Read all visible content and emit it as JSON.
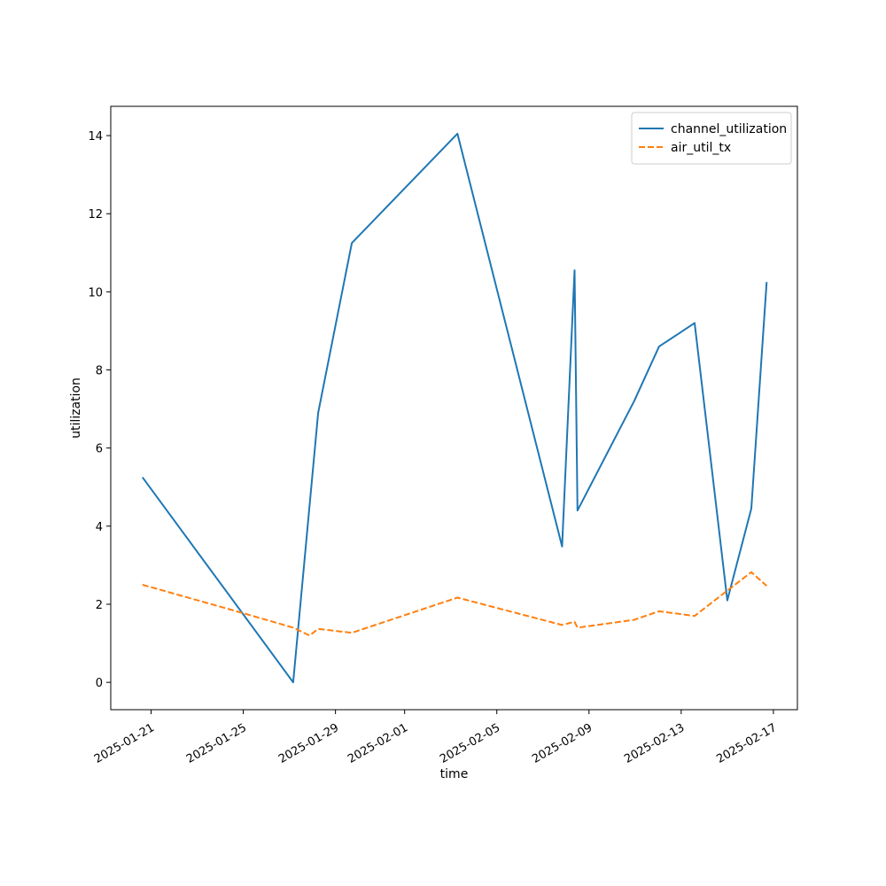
{
  "chart_data": {
    "type": "line",
    "title": "",
    "xlabel": "time",
    "ylabel": "utilization",
    "x_scale": "date",
    "xlim": [
      "2025-01-19T06:00",
      "2025-02-18T01:00"
    ],
    "ylim": [
      -0.7,
      14.75
    ],
    "x_ticks": [
      "2025-01-21",
      "2025-01-25",
      "2025-01-29",
      "2025-02-01",
      "2025-02-05",
      "2025-02-09",
      "2025-02-13",
      "2025-02-17"
    ],
    "y_ticks": [
      0,
      2,
      4,
      6,
      8,
      10,
      12,
      14
    ],
    "grid": false,
    "legend_position": "top-right",
    "series": [
      {
        "name": "channel_utilization",
        "color": "#1f77b4",
        "dash": "solid",
        "points": [
          {
            "x": "2025-01-20T15:00",
            "y": 5.25
          },
          {
            "x": "2025-01-27T04:00",
            "y": 0.0
          },
          {
            "x": "2025-01-28T06:00",
            "y": 6.9
          },
          {
            "x": "2025-01-29T17:00",
            "y": 11.25
          },
          {
            "x": "2025-02-03T07:00",
            "y": 14.05
          },
          {
            "x": "2025-02-07T20:00",
            "y": 3.48
          },
          {
            "x": "2025-02-08T09:00",
            "y": 10.55
          },
          {
            "x": "2025-02-08T12:00",
            "y": 4.4
          },
          {
            "x": "2025-02-10T23:00",
            "y": 7.2
          },
          {
            "x": "2025-02-12T01:00",
            "y": 8.6
          },
          {
            "x": "2025-02-13T14:00",
            "y": 9.2
          },
          {
            "x": "2025-02-15T00:00",
            "y": 2.1
          },
          {
            "x": "2025-02-16T01:00",
            "y": 4.45
          },
          {
            "x": "2025-02-16T17:00",
            "y": 10.25
          }
        ]
      },
      {
        "name": "air_util_tx",
        "color": "#ff7f0e",
        "dash": "dashed",
        "points": [
          {
            "x": "2025-01-20T15:00",
            "y": 2.5
          },
          {
            "x": "2025-01-25T00:00",
            "y": 1.77
          },
          {
            "x": "2025-01-27T04:00",
            "y": 1.4
          },
          {
            "x": "2025-01-27T21:00",
            "y": 1.2
          },
          {
            "x": "2025-01-28T06:00",
            "y": 1.37
          },
          {
            "x": "2025-01-29T17:00",
            "y": 1.27
          },
          {
            "x": "2025-02-03T07:00",
            "y": 2.17
          },
          {
            "x": "2025-02-07T20:00",
            "y": 1.47
          },
          {
            "x": "2025-02-08T09:00",
            "y": 1.55
          },
          {
            "x": "2025-02-08T12:00",
            "y": 1.4
          },
          {
            "x": "2025-02-10T23:00",
            "y": 1.6
          },
          {
            "x": "2025-02-12T01:00",
            "y": 1.82
          },
          {
            "x": "2025-02-13T14:00",
            "y": 1.7
          },
          {
            "x": "2025-02-15T00:00",
            "y": 2.35
          },
          {
            "x": "2025-02-16T01:00",
            "y": 2.82
          },
          {
            "x": "2025-02-16T17:00",
            "y": 2.47
          }
        ]
      }
    ]
  }
}
